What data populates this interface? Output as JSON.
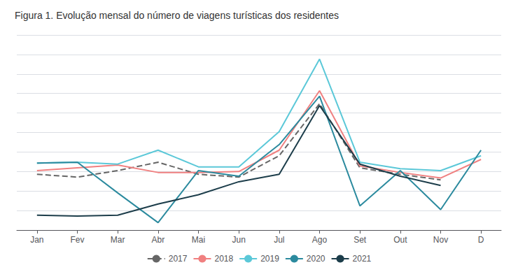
{
  "chart_data": {
    "type": "line",
    "title": "Figura 1. Evolução mensal do número de viagens turísticas dos residentes",
    "categories": [
      "Jan",
      "Fev",
      "Mar",
      "Abr",
      "Mai",
      "Jun",
      "Jul",
      "Ago",
      "Set",
      "Out",
      "Nov",
      "D"
    ],
    "series": [
      {
        "name": "2017",
        "color": "#666666",
        "line_style": "dashed",
        "values": [
          3.0,
          2.85,
          3.2,
          3.65,
          3.0,
          2.85,
          4.0,
          6.8,
          3.35,
          3.0,
          2.7,
          null
        ]
      },
      {
        "name": "2018",
        "color": "#f08080",
        "line_style": "solid",
        "values": [
          3.2,
          3.35,
          3.5,
          3.1,
          3.1,
          3.15,
          4.3,
          7.5,
          3.45,
          3.1,
          2.8,
          3.8
        ]
      },
      {
        "name": "2019",
        "color": "#5bc8d8",
        "line_style": "solid",
        "values": [
          3.6,
          3.65,
          3.55,
          4.3,
          3.4,
          3.4,
          5.3,
          9.2,
          3.65,
          3.3,
          3.2,
          4.0
        ]
      },
      {
        "name": "2020",
        "color": "#2b8a9e",
        "line_style": "solid",
        "values": [
          3.6,
          3.65,
          2.0,
          0.4,
          3.2,
          2.9,
          4.6,
          7.2,
          1.3,
          3.2,
          1.1,
          4.3
        ]
      },
      {
        "name": "2021",
        "color": "#1c3d4a",
        "line_style": "solid",
        "values": [
          0.8,
          0.75,
          0.8,
          1.4,
          1.9,
          2.6,
          3.0,
          6.7,
          3.55,
          2.9,
          2.4,
          null
        ]
      }
    ],
    "ylim": [
      0,
      10.5
    ],
    "yticks": [
      0,
      1.05,
      2.1,
      3.15,
      4.2,
      5.25,
      6.3,
      7.35,
      8.4,
      9.45,
      10.5
    ],
    "grid": true,
    "legend": "bottom",
    "tick_labels": "x"
  }
}
